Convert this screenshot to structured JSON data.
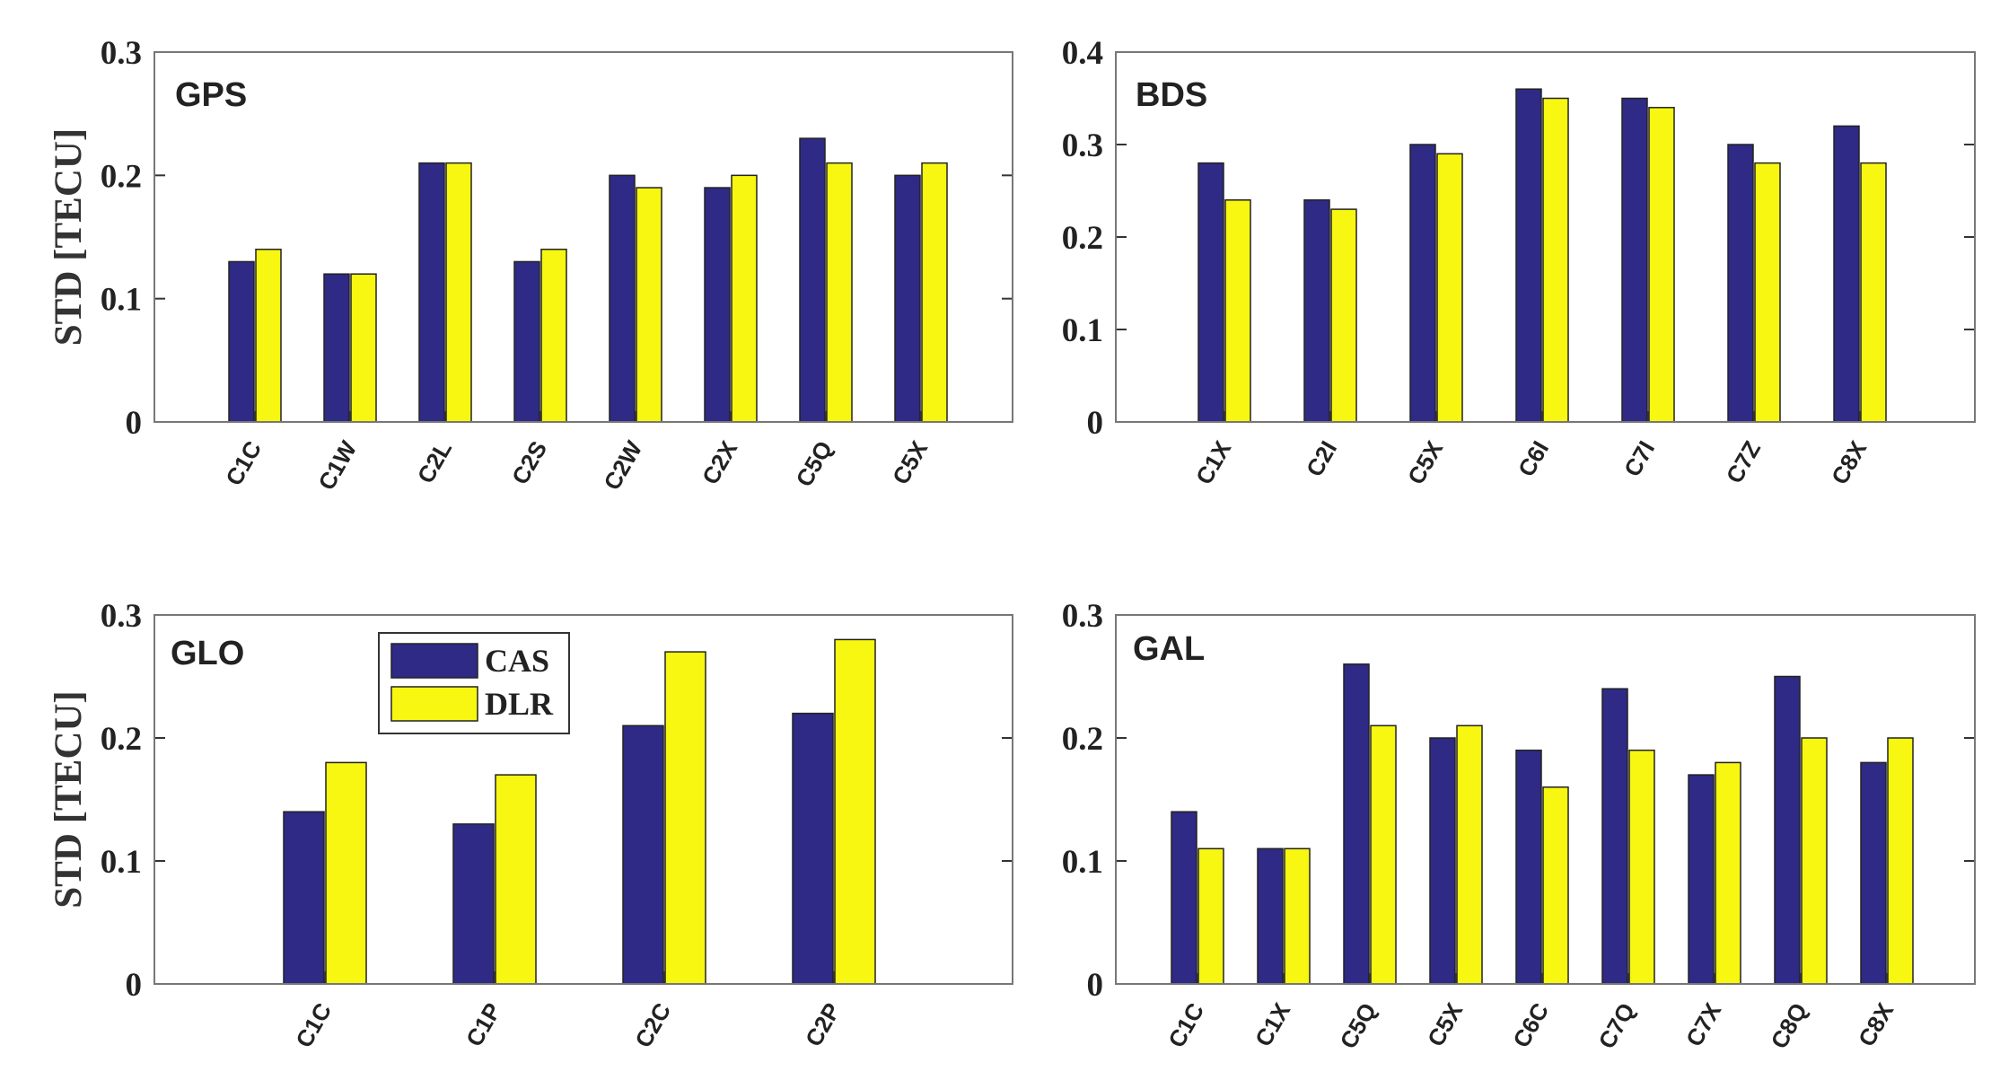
{
  "colors": {
    "CAS": "#2e2a85",
    "DLR": "#f7f711",
    "axis": "#777777",
    "bar_edge": "#222222"
  },
  "legend": [
    {
      "name": "CAS",
      "color": "#2e2a85"
    },
    {
      "name": "DLR",
      "color": "#f7f711"
    }
  ],
  "chart_data": [
    {
      "type": "bar",
      "title": "GPS",
      "ylabel": "STD [TECU]",
      "ylim": [
        0,
        0.3
      ],
      "yticks": [
        "0",
        "0.1",
        "0.2",
        "0.3"
      ],
      "categories": [
        "C1C",
        "C1W",
        "C2L",
        "C2S",
        "C2W",
        "C2X",
        "C5Q",
        "C5X"
      ],
      "series": [
        {
          "name": "CAS",
          "values": [
            0.13,
            0.12,
            0.21,
            0.13,
            0.2,
            0.19,
            0.23,
            0.2
          ]
        },
        {
          "name": "DLR",
          "values": [
            0.14,
            0.12,
            0.21,
            0.14,
            0.19,
            0.2,
            0.21,
            0.21
          ]
        }
      ]
    },
    {
      "type": "bar",
      "title": "BDS",
      "ylabel": "",
      "ylim": [
        0,
        0.4
      ],
      "yticks": [
        "0",
        "0.1",
        "0.2",
        "0.3",
        "0.4"
      ],
      "categories": [
        "C1X",
        "C2I",
        "C5X",
        "C6I",
        "C7I",
        "C7Z",
        "C8X"
      ],
      "series": [
        {
          "name": "CAS",
          "values": [
            0.28,
            0.24,
            0.3,
            0.36,
            0.35,
            0.3,
            0.32
          ]
        },
        {
          "name": "DLR",
          "values": [
            0.24,
            0.23,
            0.29,
            0.35,
            0.34,
            0.28,
            0.28
          ]
        }
      ]
    },
    {
      "type": "bar",
      "title": "GLO",
      "ylabel": "STD [TECU]",
      "ylim": [
        0,
        0.3
      ],
      "yticks": [
        "0",
        "0.1",
        "0.2",
        "0.3"
      ],
      "categories": [
        "C1C",
        "C1P",
        "C2C",
        "C2P"
      ],
      "series": [
        {
          "name": "CAS",
          "values": [
            0.14,
            0.13,
            0.21,
            0.22
          ]
        },
        {
          "name": "DLR",
          "values": [
            0.18,
            0.17,
            0.27,
            0.28
          ]
        }
      ]
    },
    {
      "type": "bar",
      "title": "GAL",
      "ylabel": "",
      "ylim": [
        0,
        0.3
      ],
      "yticks": [
        "0",
        "0.1",
        "0.2",
        "0.3"
      ],
      "categories": [
        "C1C",
        "C1X",
        "C5Q",
        "C5X",
        "C6C",
        "C7Q",
        "C7X",
        "C8Q",
        "C8X"
      ],
      "series": [
        {
          "name": "CAS",
          "values": [
            0.14,
            0.11,
            0.26,
            0.2,
            0.19,
            0.24,
            0.17,
            0.25,
            0.18
          ]
        },
        {
          "name": "DLR",
          "values": [
            0.11,
            0.11,
            0.21,
            0.21,
            0.16,
            0.19,
            0.18,
            0.2,
            0.2
          ]
        }
      ]
    }
  ]
}
